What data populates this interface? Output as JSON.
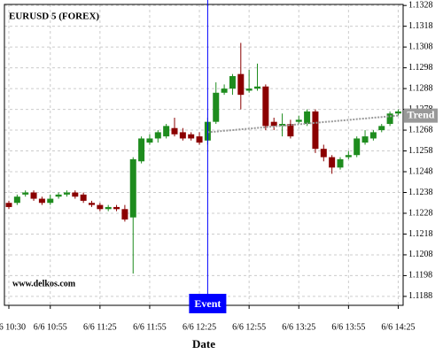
{
  "chart_data": {
    "type": "candlestick",
    "title": "EURUSD 5 (FOREX)",
    "watermark": "www.delkos.com",
    "x_label": "Date",
    "categories": [
      "6/6 10:30",
      null,
      null,
      null,
      null,
      "6/6 10:55",
      null,
      null,
      null,
      null,
      null,
      "6/6 11:25",
      null,
      null,
      null,
      null,
      null,
      "6/6 11:55",
      null,
      null,
      null,
      null,
      null,
      "6/6 12:25",
      null,
      null,
      null,
      null,
      null,
      "6/6 12:55",
      null,
      null,
      null,
      null,
      null,
      "6/6 13:25",
      null,
      null,
      null,
      null,
      null,
      "6/6 13:55",
      null,
      null,
      null,
      null,
      null,
      "6/6 14:25"
    ],
    "open": [
      1.1233,
      1.1233,
      1.1237,
      1.1238,
      1.1235,
      1.1233,
      1.1236,
      1.1237,
      1.1238,
      1.1237,
      1.1233,
      1.1232,
      1.123,
      1.1231,
      1.123,
      1.1226,
      1.1253,
      1.1262,
      1.1264,
      1.1265,
      1.1269,
      1.1267,
      1.1266,
      1.1265,
      1.1263,
      1.1272,
      1.1286,
      1.1288,
      1.1295,
      1.1287,
      1.1288,
      1.1289,
      1.1272,
      1.127,
      1.1271,
      1.1272,
      1.1271,
      1.1277,
      1.1259,
      1.1255,
      1.125,
      1.1255,
      1.1256,
      1.1262,
      1.1264,
      1.1268,
      1.1271,
      1.1276
    ],
    "high": [
      1.1234,
      1.1237,
      1.1239,
      1.1239,
      1.1236,
      1.1237,
      1.1238,
      1.1239,
      1.1239,
      1.1238,
      1.1234,
      1.1233,
      1.1232,
      1.1232,
      1.1232,
      1.1255,
      1.1265,
      1.1266,
      1.1268,
      1.1271,
      1.1274,
      1.1269,
      1.1267,
      1.1267,
      1.1274,
      1.1291,
      1.129,
      1.1295,
      1.131,
      1.1297,
      1.13,
      1.129,
      1.1274,
      1.1276,
      1.1273,
      1.1275,
      1.1278,
      1.1278,
      1.1261,
      1.1256,
      1.1255,
      1.1258,
      1.1265,
      1.1268,
      1.1268,
      1.1271,
      1.1277,
      1.1278
    ],
    "low": [
      1.123,
      1.1232,
      1.1236,
      1.1234,
      1.1232,
      1.1232,
      1.1235,
      1.1236,
      1.1235,
      1.1233,
      1.1231,
      1.1229,
      1.1229,
      1.1229,
      1.1224,
      1.1199,
      1.1252,
      1.1261,
      1.1262,
      1.1264,
      1.1265,
      1.1263,
      1.1263,
      1.1261,
      1.1261,
      1.1271,
      1.1285,
      1.1285,
      1.1278,
      1.1286,
      1.1287,
      1.1268,
      1.1268,
      1.1265,
      1.1264,
      1.1271,
      1.127,
      1.1257,
      1.1253,
      1.1247,
      1.1249,
      1.1254,
      1.1255,
      1.1261,
      1.1263,
      1.1267,
      1.127,
      1.1275
    ],
    "close": [
      1.1231,
      1.1236,
      1.1238,
      1.1235,
      1.1233,
      1.1235,
      1.1237,
      1.1238,
      1.1236,
      1.1234,
      1.1232,
      1.123,
      1.1231,
      1.123,
      1.1225,
      1.1254,
      1.1264,
      1.1264,
      1.1267,
      1.127,
      1.1266,
      1.1264,
      1.1264,
      1.1262,
      1.1272,
      1.1286,
      1.1288,
      1.1294,
      1.1285,
      1.1288,
      1.1289,
      1.127,
      1.127,
      1.1271,
      1.1265,
      1.1273,
      1.1277,
      1.1259,
      1.1255,
      1.125,
      1.1254,
      1.1256,
      1.1264,
      1.1265,
      1.1267,
      1.127,
      1.1276,
      1.1277
    ],
    "up_color": "#1e8c1e",
    "down_color": "#8b0000",
    "trend": {
      "name": "Trend",
      "color": "#999999",
      "values": [
        null,
        null,
        null,
        null,
        null,
        null,
        null,
        null,
        null,
        null,
        null,
        null,
        null,
        null,
        null,
        null,
        null,
        null,
        null,
        null,
        null,
        null,
        null,
        null,
        1.1267,
        1.12673,
        1.12677,
        1.1268,
        1.12684,
        1.12687,
        1.12691,
        1.12694,
        1.12698,
        1.12701,
        1.12705,
        1.12708,
        1.12712,
        1.12715,
        1.12719,
        1.12722,
        1.12726,
        1.12729,
        1.12733,
        1.12736,
        1.1274,
        1.12743,
        1.12747,
        1.1275
      ]
    },
    "event": {
      "label": "Event",
      "at": 24,
      "color": "#0000ff"
    },
    "ylim": [
      1.11837,
      1.13285
    ],
    "yticks": [
      1.1188,
      1.1198,
      1.1208,
      1.1218,
      1.1228,
      1.1238,
      1.1248,
      1.1258,
      1.1268,
      1.1278,
      1.1288,
      1.1298,
      1.1308,
      1.1318,
      1.1328
    ],
    "grid": true
  }
}
